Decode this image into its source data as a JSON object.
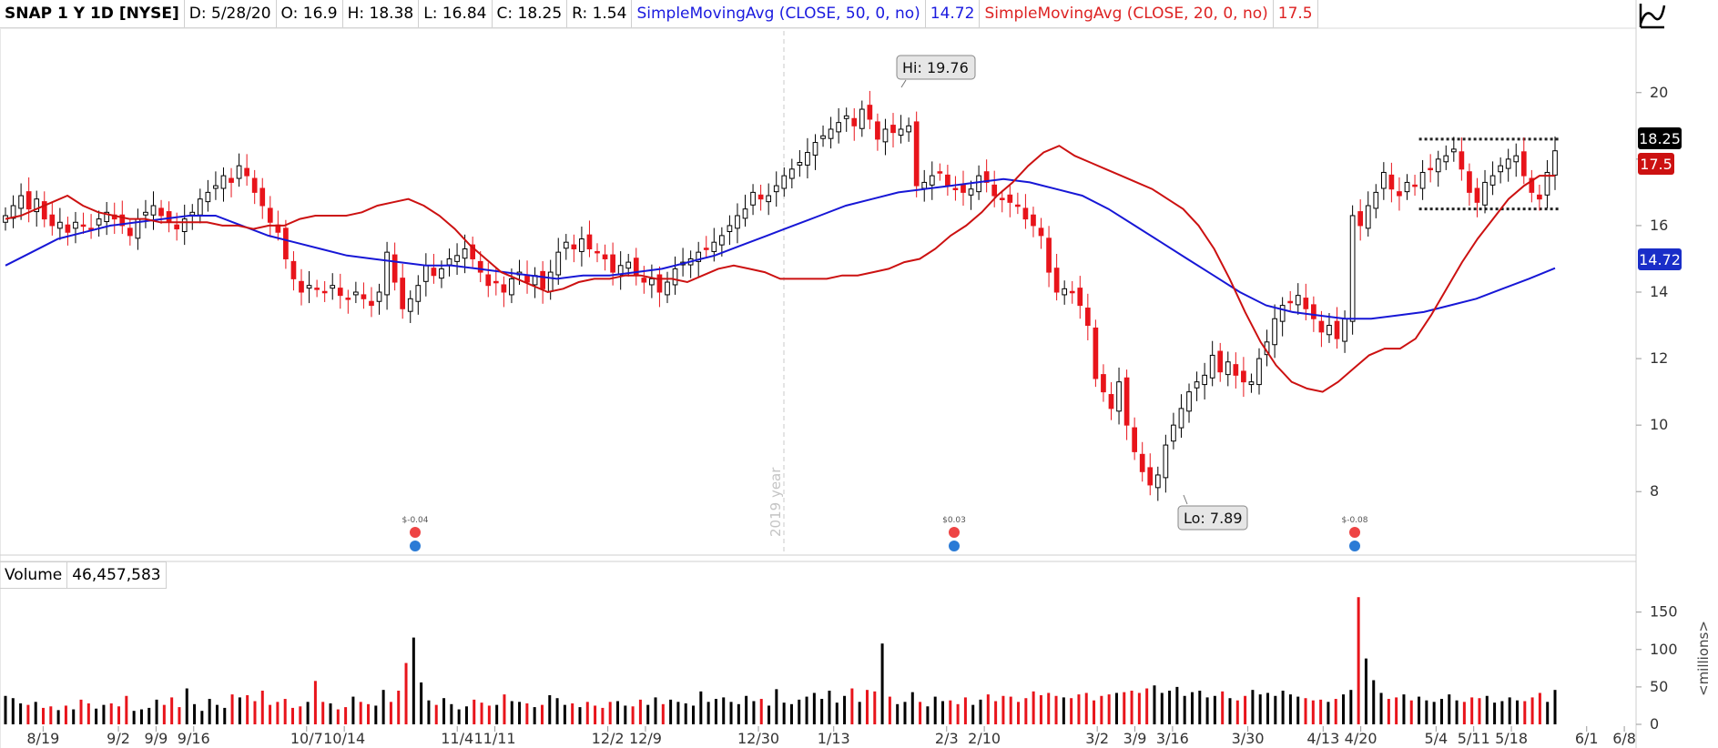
{
  "header": {
    "symbol": "SNAP 1 Y 1D [NYSE]",
    "date": "D: 5/28/20",
    "open": "O: 16.9",
    "high": "H: 18.38",
    "low": "L: 16.84",
    "close": "C: 18.25",
    "range": "R: 1.54",
    "sma50_label": "SimpleMovingAvg (CLOSE, 50, 0, no)",
    "sma50_value": "14.72",
    "sma20_label": "SimpleMovingAvg (CLOSE, 20, 0, no)",
    "sma20_value": "17.5"
  },
  "volume_header": {
    "label": "Volume",
    "value": "46,457,583"
  },
  "price_badges": {
    "last": "18.25",
    "sma20": "17.5",
    "sma50": "14.72"
  },
  "annotations": {
    "hi": "Hi: 19.76",
    "lo": "Lo: 7.89",
    "year_marker": "2019 year",
    "earnings": [
      {
        "label": "$-0.04",
        "x": "10/17"
      },
      {
        "label": "$0.03",
        "x": "2/4"
      },
      {
        "label": "$-0.08",
        "x": "4/21"
      }
    ]
  },
  "colors": {
    "up": "#000000",
    "down": "#e8141b",
    "sma20": "#cc1111",
    "sma50": "#1717d6",
    "badge_sma50": "#1a2ec8"
  },
  "icons": [
    "drawing-tool-icon",
    "earnings-icon",
    "info-icon"
  ],
  "chart_data": [
    {
      "type": "candlestick",
      "price_ticks": [
        8,
        10,
        12,
        14,
        16,
        18,
        20
      ],
      "x_ticks": [
        "8/19",
        "9/2",
        "9/9",
        "9/16",
        "10/7",
        "10/14",
        "11/4",
        "11/11",
        "12/2",
        "12/9",
        "12/30",
        "1/13",
        "2/3",
        "2/10",
        "3/2",
        "3/9",
        "3/16",
        "3/30",
        "4/13",
        "4/20",
        "5/4",
        "5/11",
        "5/18",
        "6/1",
        "6/8"
      ],
      "ylim": [
        6.2,
        21.8
      ],
      "high": 19.76,
      "low": 7.89,
      "trading_range": [
        16.5,
        18.6
      ],
      "closes": [
        16.3,
        16.6,
        16.9,
        16.5,
        16.8,
        16.2,
        16.0,
        16.1,
        15.8,
        16.1,
        16.0,
        15.9,
        16.2,
        16.4,
        16.2,
        16.0,
        15.7,
        16.2,
        16.4,
        16.6,
        16.3,
        16.1,
        15.9,
        16.2,
        16.4,
        16.8,
        17.0,
        17.2,
        17.5,
        17.3,
        17.8,
        17.5,
        17.0,
        16.6,
        16.1,
        15.8,
        15.0,
        14.4,
        14.0,
        14.2,
        14.1,
        14.0,
        14.2,
        13.9,
        13.8,
        14.0,
        13.8,
        13.6,
        14.0,
        15.2,
        14.3,
        13.5,
        13.8,
        14.2,
        14.8,
        14.5,
        14.7,
        15.0,
        15.1,
        15.3,
        15.0,
        14.6,
        14.2,
        14.3,
        14.0,
        14.4,
        14.6,
        14.3,
        14.5,
        14.1,
        14.6,
        15.2,
        15.5,
        15.3,
        15.6,
        15.3,
        15.2,
        15.0,
        14.6,
        14.8,
        14.9,
        14.5,
        14.3,
        14.4,
        14.0,
        14.3,
        14.7,
        14.9,
        15.0,
        15.2,
        15.3,
        15.5,
        15.7,
        16.0,
        16.3,
        16.5,
        17.0,
        16.8,
        16.9,
        17.2,
        17.5,
        17.7,
        17.9,
        18.2,
        18.5,
        18.7,
        18.9,
        19.1,
        19.3,
        19.0,
        19.5,
        19.2,
        18.6,
        18.9,
        18.8,
        18.9,
        19.0,
        17.2,
        17.3,
        17.5,
        17.6,
        17.2,
        17.1,
        17.0,
        17.1,
        17.5,
        17.3,
        16.9,
        16.8,
        16.7,
        16.6,
        16.2,
        16.0,
        15.7,
        14.6,
        14.0,
        14.1,
        14.0,
        13.6,
        13.0,
        11.4,
        11.0,
        10.5,
        11.3,
        10.0,
        9.2,
        8.6,
        8.2,
        8.5,
        9.4,
        10.0,
        10.5,
        11.0,
        11.3,
        11.5,
        12.1,
        11.6,
        11.9,
        11.5,
        11.3,
        11.3,
        12.0,
        12.5,
        13.2,
        13.6,
        13.7,
        13.9,
        13.5,
        13.2,
        12.8,
        13.0,
        12.6,
        13.2,
        16.3,
        16.0,
        16.6,
        17.0,
        17.6,
        17.1,
        16.9,
        17.3,
        17.2,
        17.6,
        17.7,
        18.0,
        18.1,
        18.3,
        17.7,
        17.0,
        16.7,
        17.3,
        17.5,
        17.8,
        18.0,
        18.1,
        17.5,
        17.0,
        16.8,
        17.6,
        18.25
      ],
      "sma20": [
        16.2,
        16.3,
        16.5,
        16.7,
        16.9,
        16.6,
        16.4,
        16.3,
        16.2,
        16.2,
        16.1,
        16.1,
        16.1,
        16.1,
        16.0,
        16.0,
        15.9,
        16.0,
        16.0,
        16.2,
        16.3,
        16.3,
        16.3,
        16.4,
        16.6,
        16.7,
        16.8,
        16.6,
        16.3,
        15.9,
        15.4,
        15.0,
        14.6,
        14.4,
        14.2,
        14.0,
        14.1,
        14.3,
        14.4,
        14.4,
        14.5,
        14.5,
        14.4,
        14.4,
        14.3,
        14.5,
        14.7,
        14.8,
        14.7,
        14.6,
        14.4,
        14.4,
        14.4,
        14.4,
        14.5,
        14.5,
        14.6,
        14.7,
        14.9,
        15.0,
        15.3,
        15.7,
        16.0,
        16.4,
        16.9,
        17.3,
        17.8,
        18.2,
        18.4,
        18.1,
        17.9,
        17.7,
        17.5,
        17.3,
        17.1,
        16.8,
        16.5,
        16.0,
        15.3,
        14.4,
        13.4,
        12.5,
        11.8,
        11.3,
        11.1,
        11.0,
        11.3,
        11.7,
        12.1,
        12.3,
        12.3,
        12.6,
        13.3,
        14.1,
        14.9,
        15.6,
        16.2,
        16.8,
        17.2,
        17.5,
        17.5
      ],
      "sma50": [
        14.8,
        15.2,
        15.6,
        15.8,
        16.0,
        16.1,
        16.2,
        16.3,
        16.3,
        16.0,
        15.7,
        15.5,
        15.3,
        15.1,
        15.0,
        14.9,
        14.8,
        14.8,
        14.7,
        14.6,
        14.5,
        14.4,
        14.5,
        14.5,
        14.6,
        14.7,
        14.9,
        15.1,
        15.4,
        15.7,
        16.0,
        16.3,
        16.6,
        16.8,
        17.0,
        17.1,
        17.2,
        17.3,
        17.4,
        17.3,
        17.1,
        16.9,
        16.5,
        16.0,
        15.5,
        15.0,
        14.5,
        14.0,
        13.6,
        13.4,
        13.3,
        13.2,
        13.2,
        13.3,
        13.4,
        13.6,
        13.8,
        14.1,
        14.4,
        14.72
      ],
      "up_color": "#000000",
      "down_color": "#e8141b"
    },
    {
      "type": "bar",
      "title": "Volume",
      "unit": "<millions>",
      "ylim": [
        0,
        180
      ],
      "y_ticks": [
        0,
        50,
        100,
        150
      ],
      "last_value": "46,457,583",
      "values": [
        38,
        35,
        28,
        26,
        30,
        22,
        24,
        19,
        25,
        20,
        33,
        28,
        21,
        26,
        28,
        24,
        38,
        18,
        20,
        22,
        33,
        26,
        36,
        23,
        48,
        27,
        18,
        34,
        26,
        22,
        40,
        36,
        39,
        31,
        45,
        26,
        30,
        34,
        22,
        24,
        30,
        58,
        30,
        28,
        20,
        23,
        37,
        30,
        27,
        25,
        46,
        30,
        45,
        82,
        116,
        56,
        32,
        26,
        35,
        27,
        20,
        24,
        33,
        29,
        25,
        26,
        40,
        31,
        30,
        28,
        23,
        26,
        39,
        35,
        26,
        28,
        23,
        30,
        25,
        22,
        30,
        31,
        25,
        24,
        33,
        26,
        36,
        27,
        33,
        30,
        28,
        25,
        44,
        30,
        34,
        36,
        30,
        27,
        38,
        31,
        34,
        25,
        47,
        29,
        27,
        33,
        37,
        42,
        34,
        45,
        29,
        38,
        48,
        30,
        46,
        44,
        108,
        37,
        27,
        30,
        43,
        30,
        24,
        37,
        31,
        32,
        27,
        36,
        26,
        33,
        40,
        31,
        38,
        37,
        30,
        35,
        44,
        39,
        42,
        38,
        36,
        35,
        40,
        42,
        32,
        38,
        40,
        42,
        43,
        45,
        42,
        48,
        52,
        42,
        45,
        50,
        38,
        43,
        45,
        36,
        38,
        44,
        35,
        32,
        38,
        46,
        40,
        42,
        38,
        45,
        40,
        37,
        35,
        32,
        33,
        30,
        34,
        40,
        46,
        170,
        88,
        59,
        42,
        34,
        36,
        40,
        32,
        37,
        32,
        30,
        34,
        40,
        32,
        30,
        36,
        35,
        38,
        29,
        31,
        36,
        32,
        31,
        36,
        42,
        30,
        46
      ]
    }
  ]
}
